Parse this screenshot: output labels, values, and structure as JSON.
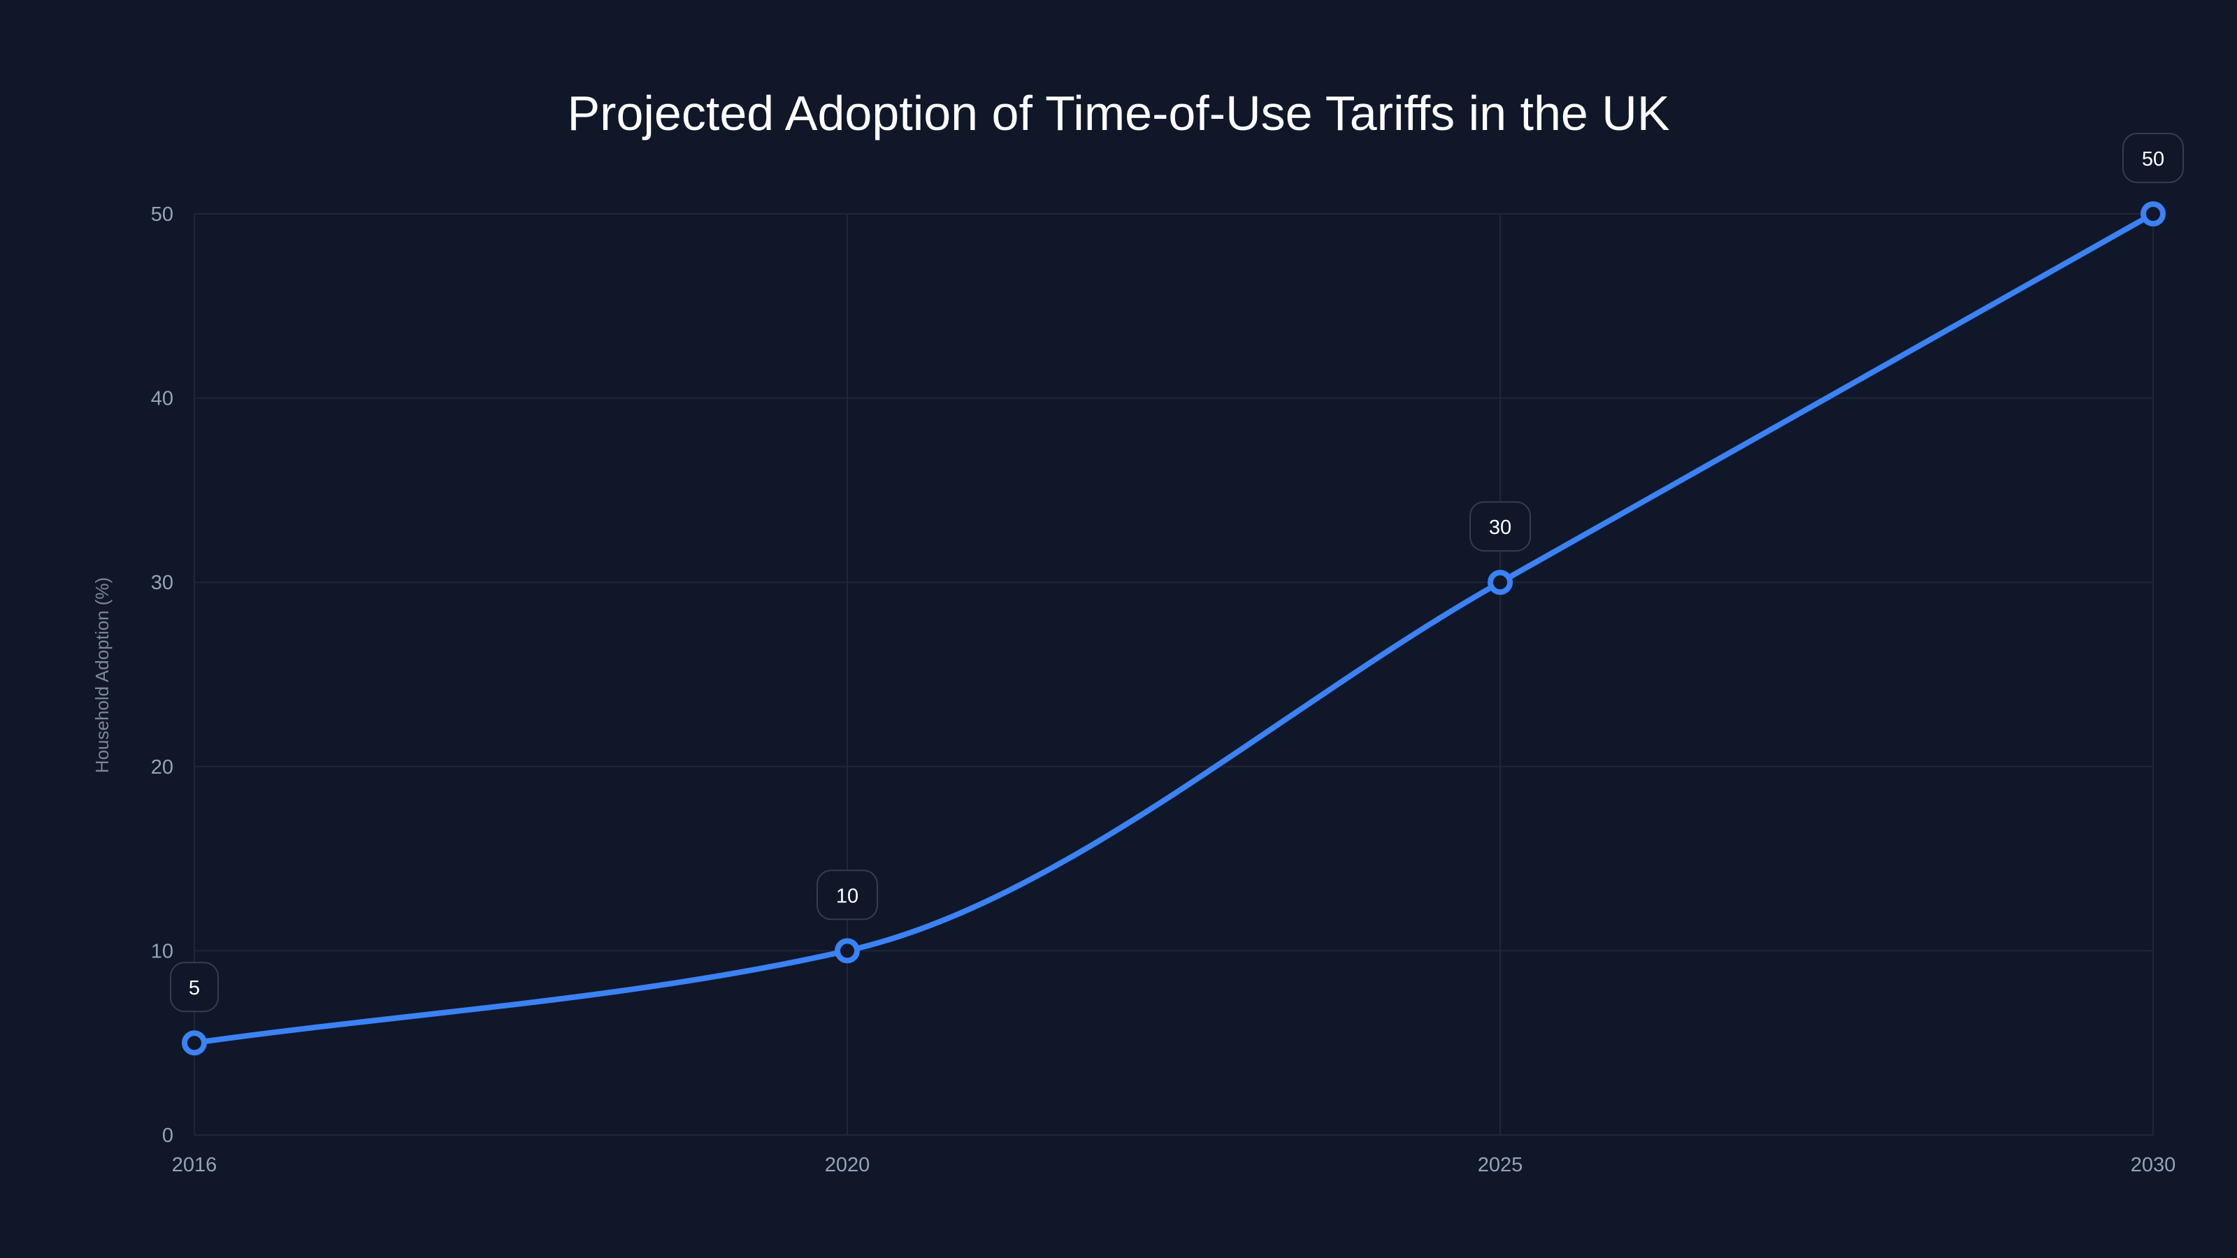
{
  "chart_data": {
    "type": "line",
    "title": "Projected Adoption of Time-of-Use Tariffs in the UK",
    "xlabel": "",
    "ylabel": "Household Adoption (%)",
    "categories": [
      "2016",
      "2020",
      "2025",
      "2030"
    ],
    "series": [
      {
        "name": "Household Adoption (%)",
        "values": [
          5,
          10,
          30,
          50
        ],
        "color": "#3b82f6"
      }
    ],
    "data_labels": [
      "5",
      "10",
      "30",
      "50"
    ],
    "ylim": [
      0,
      50
    ],
    "yticks": [
      "0",
      "10",
      "20",
      "30",
      "40",
      "50"
    ],
    "grid": true,
    "legend": "none"
  }
}
